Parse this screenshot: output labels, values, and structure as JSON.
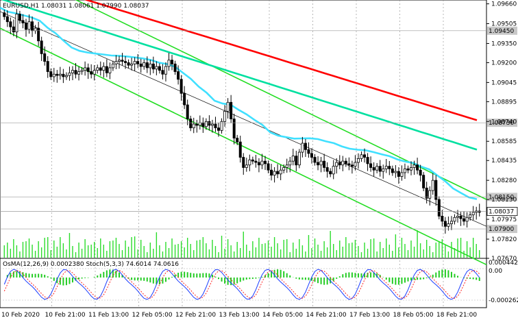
{
  "chart_data": {
    "type": "candlestick",
    "header": {
      "symbol": "EURUSD,H1",
      "open": "1.08031",
      "high": "1.08061",
      "low": "1.07990",
      "close": "1.08037"
    },
    "x_labels": [
      "10 Feb 2020",
      "10 Feb 21:00",
      "11 Feb 13:00",
      "12 Feb 05:00",
      "12 Feb 21:00",
      "13 Feb 13:00",
      "14 Feb 05:00",
      "14 Feb 21:00",
      "17 Feb 13:00",
      "18 Feb 05:00",
      "18 Feb 21:00"
    ],
    "y_ticks": [
      "1.09660",
      "1.09505",
      "1.09350",
      "1.09200",
      "1.09045",
      "1.08895",
      "1.08740",
      "1.08585",
      "1.08435",
      "1.08280",
      "1.08130",
      "1.07975",
      "1.07820",
      "1.07670"
    ],
    "ylim": [
      1.0767,
      1.0969
    ],
    "price_tags": [
      {
        "label": "1.09450",
        "value": 1.0945,
        "style": "level"
      },
      {
        "label": "1.08730",
        "value": 1.0873,
        "style": "level"
      },
      {
        "label": "1.08150",
        "value": 1.0815,
        "style": "level"
      },
      {
        "label": "1.08037",
        "value": 1.08037,
        "style": "current"
      },
      {
        "label": "1.07900",
        "value": 1.079,
        "style": "level"
      }
    ],
    "closes": [
      1.0956,
      1.0952,
      1.0948,
      1.0944,
      1.0958,
      1.0953,
      1.0951,
      1.0946,
      1.0952,
      1.0945,
      1.0947,
      1.0937,
      1.0927,
      1.0921,
      1.0913,
      1.0909,
      1.0911,
      1.091,
      1.0911,
      1.0909,
      1.091,
      1.0912,
      1.0914,
      1.0911,
      1.0913,
      1.0914,
      1.0916,
      1.0913,
      1.0911,
      1.0914,
      1.0916,
      1.0914,
      1.0917,
      1.0912,
      1.0916,
      1.0919,
      1.0921,
      1.0922,
      1.0921,
      1.092,
      1.0918,
      1.0919,
      1.0921,
      1.0919,
      1.0917,
      1.092,
      1.0916,
      1.0919,
      1.0915,
      1.0917,
      1.0914,
      1.0911,
      1.0917,
      1.0922,
      1.0919,
      1.0913,
      1.0907,
      1.0896,
      1.0887,
      1.0876,
      1.0869,
      1.0872,
      1.0871,
      1.0873,
      1.087,
      1.0874,
      1.0871,
      1.0872,
      1.0869,
      1.0867,
      1.0874,
      1.0882,
      1.0889,
      1.0876,
      1.0861,
      1.0858,
      1.0846,
      1.0838,
      1.084,
      1.0844,
      1.0843,
      1.0842,
      1.084,
      1.0843,
      1.0841,
      1.0836,
      1.0832,
      1.0835,
      1.0833,
      1.0836,
      1.0838,
      1.084,
      1.0843,
      1.0847,
      1.084,
      1.085,
      1.0857,
      1.0852,
      1.0849,
      1.0846,
      1.0842,
      1.084,
      1.0843,
      1.0838,
      1.0835,
      1.0833,
      1.0839,
      1.0842,
      1.084,
      1.0843,
      1.0841,
      1.084,
      1.0839,
      1.0842,
      1.0845,
      1.0848,
      1.0846,
      1.0841,
      1.0838,
      1.0836,
      1.0839,
      1.0835,
      1.0837,
      1.0839,
      1.0837,
      1.0834,
      1.0835,
      1.0831,
      1.0834,
      1.0837,
      1.0836,
      1.0838,
      1.084,
      1.0836,
      1.0832,
      1.0822,
      1.0814,
      1.082,
      1.0828,
      1.0813,
      1.08,
      1.0796,
      1.0792,
      1.0794,
      1.0796,
      1.0799,
      1.08,
      1.0798,
      1.0796,
      1.0799,
      1.0801,
      1.0803,
      1.0804,
      1.0803
    ],
    "moving_averages": [
      {
        "color": "#ff0000",
        "start": 1.099,
        "end": 1.0875
      },
      {
        "color": "#00e0a0",
        "start": 1.097,
        "end": 1.0852
      },
      {
        "color": "#40e0ff",
        "start": 1.0958,
        "end": 1.0816
      }
    ],
    "channels": [
      {
        "upper_start": 1.0998,
        "upper_end": 1.0813,
        "lower_start": 1.0947,
        "lower_end": 1.0762,
        "color": "#22dd22"
      },
      {
        "upper_start": 1.096,
        "upper_end": 1.0792,
        "lower_start": 1.096,
        "lower_end": 1.0792,
        "color": "#000000"
      }
    ],
    "volume_note": "volume bars bottom of main pane",
    "indicator": {
      "label": "OsMA(12,26,9) 0.0002380  Stoch(5,3,3) 74.6014 74.0616",
      "y_top": "0.0004427",
      "y_zero": "0.00",
      "y_bottom": "-0.0002627",
      "stoch_level_top": "80",
      "stoch_level_bottom": "20"
    },
    "grid": false
  }
}
